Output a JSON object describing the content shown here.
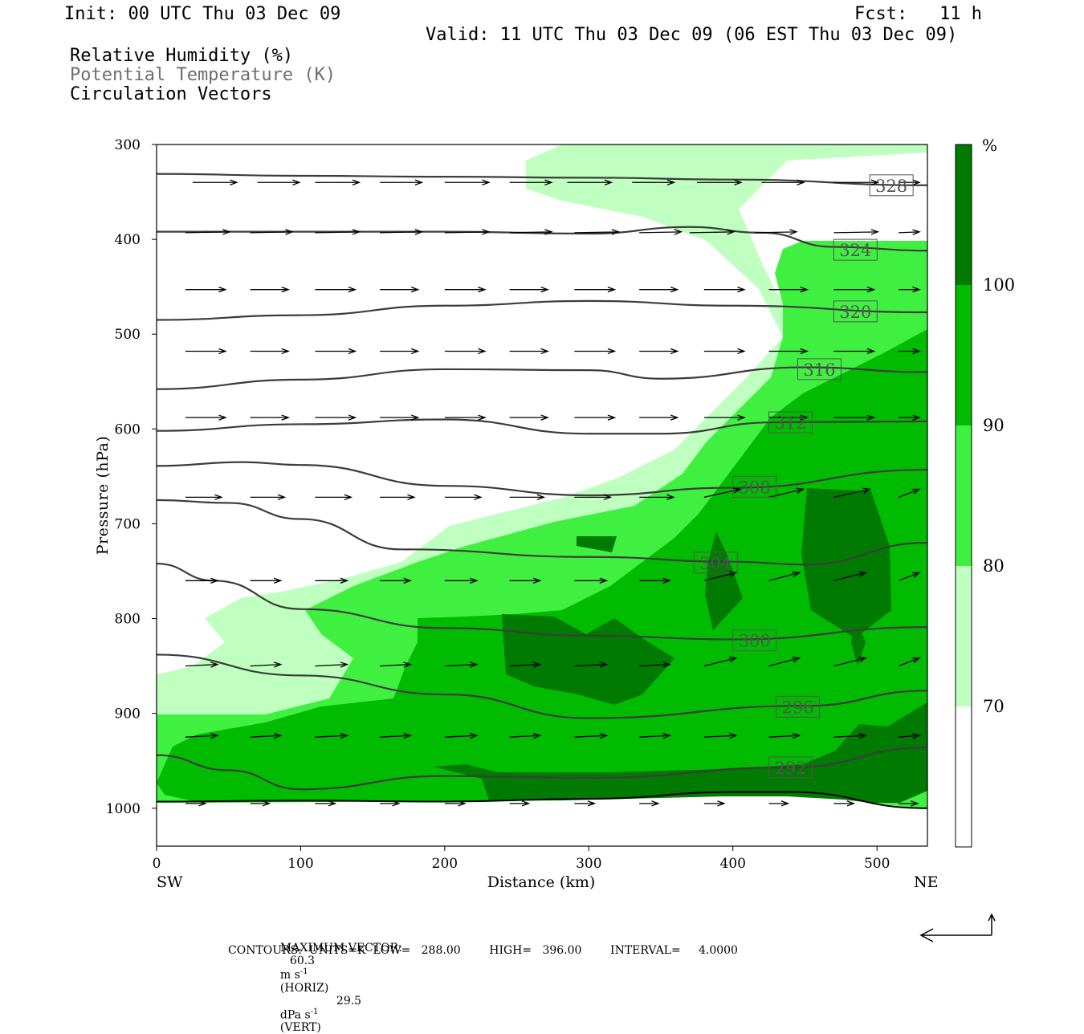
{
  "header": {
    "init": "Init: 00 UTC Thu 03 Dec 09",
    "fcst": "Fcst:   11 h",
    "valid": "Valid: 11 UTC Thu 03 Dec 09 (06 EST Thu 03 Dec 09)",
    "field1": "Relative Humidity (%)",
    "field2": "Potential Temperature (K)",
    "field3": "Circulation Vectors"
  },
  "footer": {
    "max_vector_label": "MAXIMUM VECTOR:",
    "horiz_value": "60.3",
    "horiz_unit": "m s",
    "horiz_suffix": "(HORIZ)",
    "vert_value": "29.5",
    "vert_unit": "dPa s",
    "vert_suffix": "(VERT)",
    "exponent": "-1",
    "contours_line": "CONTOURS:  UNITS=K  LOW=   288.00        HIGH=   396.00        INTERVAL=     4.0000"
  },
  "colors": {
    "rh_70_80": "#bfffbf",
    "rh_80_90": "#40f040",
    "rh_90_100": "#00bb00",
    "rh_100": "#007a00",
    "theta_line": "#3c3c3c",
    "vector": "#000000"
  },
  "chart_data": {
    "type": "cross-section",
    "xlabel": "Distance (km)",
    "ylabel": "Pressure (hPa)",
    "xlim": [
      0,
      535
    ],
    "ylim": [
      1040,
      300
    ],
    "x_ticks": [
      0,
      100,
      200,
      300,
      400,
      500
    ],
    "y_ticks": [
      300,
      400,
      500,
      600,
      700,
      800,
      900,
      1000
    ],
    "endpoint_left": "SW",
    "endpoint_right": "NE",
    "colorbar": {
      "unit": "%",
      "levels": [
        70,
        80,
        90,
        100
      ]
    },
    "theta_contours": [
      {
        "label": "328",
        "x": [
          0,
          100,
          200,
          300,
          400,
          535
        ],
        "p": [
          331,
          333,
          334,
          335,
          337,
          343
        ],
        "label_at": [
          510,
          343
        ]
      },
      {
        "label": "324",
        "x": [
          0,
          100,
          200,
          300,
          370,
          420,
          470,
          535
        ],
        "p": [
          392,
          392,
          392,
          394,
          387,
          393,
          408,
          412
        ],
        "label_at": [
          485,
          411
        ]
      },
      {
        "label": "320",
        "x": [
          0,
          100,
          200,
          300,
          400,
          535
        ],
        "p": [
          485,
          480,
          470,
          465,
          470,
          477
        ],
        "label_at": [
          485,
          476
        ]
      },
      {
        "label": "316",
        "x": [
          0,
          100,
          200,
          300,
          350,
          450,
          535
        ],
        "p": [
          558,
          548,
          537,
          538,
          547,
          535,
          540
        ],
        "label_at": [
          460,
          537
        ]
      },
      {
        "label": "312",
        "x": [
          0,
          100,
          200,
          300,
          350,
          430,
          535
        ],
        "p": [
          602,
          595,
          590,
          605,
          605,
          593,
          592
        ],
        "label_at": [
          440,
          593
        ]
      },
      {
        "label": "308",
        "x": [
          0,
          60,
          100,
          200,
          300,
          400,
          535
        ],
        "p": [
          639,
          635,
          638,
          660,
          670,
          662,
          643
        ],
        "label_at": [
          415,
          661
        ]
      },
      {
        "label": "304",
        "x": [
          0,
          50,
          100,
          170,
          300,
          400,
          450,
          535
        ],
        "p": [
          675,
          678,
          695,
          727,
          735,
          740,
          743,
          720
        ],
        "label_at": [
          388,
          741
        ]
      },
      {
        "label": "300",
        "x": [
          0,
          40,
          100,
          200,
          300,
          400,
          535
        ],
        "p": [
          742,
          760,
          790,
          810,
          818,
          822,
          809
        ],
        "label_at": [
          415,
          823
        ]
      },
      {
        "label": "296",
        "x": [
          0,
          100,
          200,
          300,
          450,
          535
        ],
        "p": [
          838,
          860,
          880,
          905,
          892,
          876
        ],
        "label_at": [
          445,
          893
        ]
      },
      {
        "label": "292",
        "x": [
          0,
          50,
          100,
          200,
          300,
          440,
          535
        ],
        "p": [
          944,
          960,
          980,
          966,
          968,
          957,
          936
        ],
        "label_at": [
          440,
          957
        ]
      },
      {
        "label": "",
        "x": [
          0,
          100,
          200,
          300,
          400,
          440,
          535
        ],
        "p": [
          993,
          992,
          993,
          990,
          983,
          983,
          1000
        ]
      }
    ],
    "vector_max": "60.3 m s-1 (HORIZ) / 29.5 dPa s-1 (VERT)"
  }
}
